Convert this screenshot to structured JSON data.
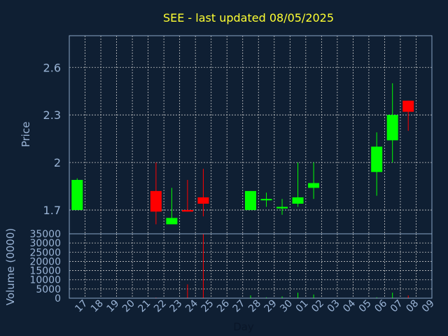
{
  "chart_data": {
    "type": "candlestick",
    "title": "SEE - last updated 08/05/2025",
    "price_axis": {
      "label": "Price",
      "range": [
        1.55,
        2.8
      ],
      "ticks": [
        "1.7",
        "2",
        "2.3",
        "2.6"
      ]
    },
    "volume_axis": {
      "label": "Volume (0000)",
      "range": [
        0,
        35000
      ],
      "ticks": [
        "0",
        "5000",
        "10000",
        "15000",
        "20000",
        "25000",
        "30000",
        "35000"
      ]
    },
    "x_axis": {
      "label": "Day",
      "ticks": [
        "17",
        "18",
        "19",
        "20",
        "21",
        "22",
        "23",
        "24",
        "25",
        "26",
        "27",
        "28",
        "29",
        "30",
        "01",
        "02",
        "03",
        "04",
        "05",
        "06",
        "07",
        "08",
        "09"
      ]
    },
    "grid": true,
    "colors": {
      "up": "#00ff00",
      "down": "#ff0000",
      "title": "#ffff33",
      "background": "#0f1f33"
    },
    "candles": [
      {
        "day": "17",
        "open": 1.7,
        "high": 1.9,
        "low": 1.7,
        "close": 1.89,
        "volume": 0
      },
      {
        "day": "22",
        "open": 1.82,
        "high": 2.0,
        "low": 1.61,
        "close": 1.69,
        "volume": 400
      },
      {
        "day": "23",
        "open": 1.61,
        "high": 1.84,
        "low": 1.61,
        "close": 1.65,
        "volume": 100
      },
      {
        "day": "24",
        "open": 1.7,
        "high": 1.89,
        "low": 1.69,
        "close": 1.69,
        "volume": 7500
      },
      {
        "day": "25",
        "open": 1.78,
        "high": 1.96,
        "low": 1.66,
        "close": 1.74,
        "volume": 35000
      },
      {
        "day": "28",
        "open": 1.7,
        "high": 1.82,
        "low": 1.7,
        "close": 1.82,
        "volume": 1500
      },
      {
        "day": "29",
        "open": 1.77,
        "high": 1.81,
        "low": 1.72,
        "close": 1.77,
        "volume": 500
      },
      {
        "day": "30",
        "open": 1.71,
        "high": 1.77,
        "low": 1.67,
        "close": 1.72,
        "volume": 1000
      },
      {
        "day": "01",
        "open": 1.74,
        "high": 2.0,
        "low": 1.72,
        "close": 1.78,
        "volume": 3000
      },
      {
        "day": "02",
        "open": 1.84,
        "high": 2.0,
        "low": 1.77,
        "close": 1.87,
        "volume": 2000
      },
      {
        "day": "06",
        "open": 1.94,
        "high": 2.19,
        "low": 1.79,
        "close": 2.1,
        "volume": 500
      },
      {
        "day": "07",
        "open": 2.14,
        "high": 2.5,
        "low": 2.0,
        "close": 2.3,
        "volume": 3000
      },
      {
        "day": "08",
        "open": 2.39,
        "high": 2.39,
        "low": 2.2,
        "close": 2.32,
        "volume": 1500
      }
    ]
  }
}
